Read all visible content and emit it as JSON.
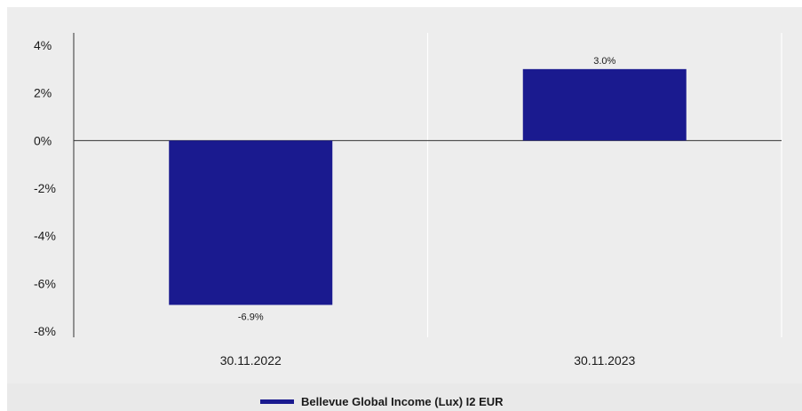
{
  "chart_data": {
    "type": "bar",
    "title": "",
    "xlabel": "",
    "ylabel": "",
    "categories": [
      "30.11.2022",
      "30.11.2023"
    ],
    "series": [
      {
        "name": "Bellevue Global Income (Lux) I2 EUR",
        "values": [
          -6.9,
          3.0
        ],
        "color": "#1a1a8f"
      }
    ],
    "data_labels": [
      "-6.9%",
      "3.0%"
    ],
    "ylim": [
      -8,
      4
    ],
    "yticks": [
      4,
      2,
      0,
      -2,
      -4,
      -6,
      -8
    ],
    "ytick_labels": [
      "4%",
      "2%",
      "0%",
      "-2%",
      "-4%",
      "-6%",
      "-8%"
    ],
    "grid": "vertical",
    "legend_position": "bottom-center"
  }
}
